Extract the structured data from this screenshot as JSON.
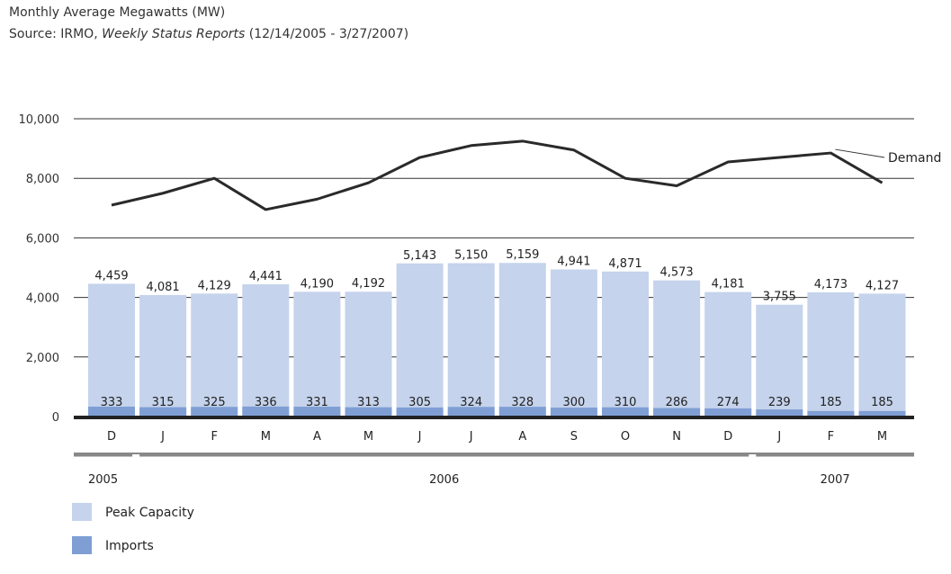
{
  "header": {
    "title": "Monthly Average Megawatts (MW)",
    "source_prefix": "Source:  IRMO, ",
    "source_italic": "Weekly Status Reports",
    "source_suffix": " (12/14/2005 - 3/27/2007)"
  },
  "chart_data": {
    "type": "bar",
    "categories": [
      "D",
      "J",
      "F",
      "M",
      "A",
      "M",
      "J",
      "J",
      "A",
      "S",
      "O",
      "N",
      "D",
      "J",
      "F",
      "M"
    ],
    "years": [
      {
        "label": "2005",
        "start": 0,
        "end": 0
      },
      {
        "label": "2006",
        "start": 1,
        "end": 12
      },
      {
        "label": "2007",
        "start": 13,
        "end": 15
      }
    ],
    "series": [
      {
        "name": "Peak Capacity",
        "color": "#c5d3ec",
        "values": [
          4459,
          4081,
          4129,
          4441,
          4190,
          4192,
          5143,
          5150,
          5159,
          4941,
          4871,
          4573,
          4181,
          3755,
          4173,
          4127
        ],
        "labels": [
          "4,459",
          "4,081",
          "4,129",
          "4,441",
          "4,190",
          "4,192",
          "5,143",
          "5,150",
          "5,159",
          "4,941",
          "4,871",
          "4,573",
          "4,181",
          "3,755",
          "4,173",
          "4,127"
        ]
      },
      {
        "name": "Imports",
        "color": "#7f9fd4",
        "values": [
          333,
          315,
          325,
          336,
          331,
          313,
          305,
          324,
          328,
          300,
          310,
          286,
          274,
          239,
          185,
          185
        ],
        "labels": [
          "333",
          "315",
          "325",
          "336",
          "331",
          "313",
          "305",
          "324",
          "328",
          "300",
          "310",
          "286",
          "274",
          "239",
          "185",
          "185"
        ]
      },
      {
        "name": "Demand",
        "type": "line",
        "color": "#2a2a2a",
        "values": [
          7100,
          7500,
          8000,
          6950,
          7300,
          7850,
          8700,
          9100,
          9250,
          8950,
          8000,
          7750,
          8550,
          8700,
          8850,
          7850
        ]
      }
    ],
    "legend": [
      "Peak Capacity",
      "Imports"
    ],
    "demand_label": "Demand",
    "yticks": [
      "0",
      "2,000",
      "4,000",
      "6,000",
      "8,000",
      "10,000"
    ],
    "ylim": [
      0,
      10000
    ],
    "grid": true,
    "legend_position": "bottom-left"
  }
}
